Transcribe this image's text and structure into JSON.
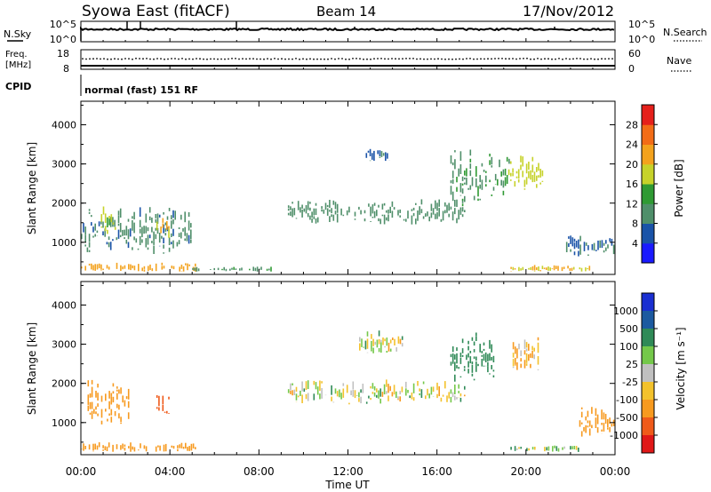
{
  "header": {
    "station": "Syowa East (fitACF)",
    "beam": "Beam 14",
    "date": "17/Nov/2012"
  },
  "noise_panel": {
    "left_label": "N.Sky",
    "right_label": "N.Search",
    "left_ticks": [
      "10^5",
      "10^0"
    ],
    "right_ticks": [
      "10^5",
      "10^0"
    ]
  },
  "freq_panel": {
    "left_label_1": "Freq.",
    "left_label_2": "[MHz]",
    "right_label": "Nave",
    "left_ticks": [
      "18",
      "8"
    ],
    "right_ticks": [
      "60",
      "0"
    ],
    "freq_value": 13.3,
    "nave_value": 15
  },
  "cpid": {
    "label": "CPID",
    "value": "normal (fast) 151 RF"
  },
  "power_colorbar": {
    "title": "Power [dB]",
    "labels": [
      "4",
      "8",
      "12",
      "16",
      "20",
      "24",
      "28"
    ],
    "colors": [
      "#1a1aff",
      "#1a53a8",
      "#4f8f6a",
      "#2f9a33",
      "#c6d22a",
      "#f3a21d",
      "#f26c17",
      "#e5201b"
    ]
  },
  "velocity_colorbar": {
    "title": "Velocity [m s⁻¹]",
    "labels": [
      "1000",
      "500",
      "100",
      "25",
      "-25",
      "-100",
      "-500",
      "-1000"
    ],
    "colors": [
      "#1a2fd1",
      "#1c5aa0",
      "#2f8a57",
      "#74c84a",
      "#c0c0c0",
      "#f3c22c",
      "#f79a1f",
      "#ef5a1a",
      "#e01818"
    ]
  },
  "axes": {
    "ylabel": "Slant Range [km]",
    "xlabel": "Time UT",
    "yticks": [
      "1000",
      "2000",
      "3000",
      "4000"
    ],
    "xticks": [
      "00:00",
      "04:00",
      "08:00",
      "12:00",
      "16:00",
      "20:00",
      "00:00"
    ]
  },
  "chart_data": {
    "type": "heatmap",
    "title": "Syowa East (fitACF) Beam 14 17/Nov/2012",
    "xlabel": "Time UT",
    "ylabel": "Slant Range [km]",
    "xlim_hours": [
      0,
      24
    ],
    "ylim_km": [
      180,
      4600
    ],
    "panels": [
      {
        "name": "Power [dB]",
        "scale": [
          0,
          30
        ],
        "bands": [
          {
            "t0": 0.0,
            "t1": 5.2,
            "r0": 250,
            "r1": 480,
            "value": 22
          },
          {
            "t0": 0.0,
            "t1": 5.0,
            "r0": 700,
            "r1": 1900,
            "value": 9
          },
          {
            "t0": 0.9,
            "t1": 1.6,
            "r0": 1050,
            "r1": 1950,
            "value": 17
          },
          {
            "t0": 3.3,
            "t1": 4.1,
            "r0": 1100,
            "r1": 1650,
            "value": 21
          },
          {
            "t0": 5.0,
            "t1": 8.6,
            "r0": 250,
            "r1": 380,
            "value": 11
          },
          {
            "t0": 9.3,
            "t1": 17.3,
            "r0": 1450,
            "r1": 2100,
            "value": 10
          },
          {
            "t0": 12.8,
            "t1": 14.0,
            "r0": 3050,
            "r1": 3400,
            "value": 8
          },
          {
            "t0": 16.6,
            "t1": 19.3,
            "r0": 1900,
            "r1": 3400,
            "value": 12
          },
          {
            "t0": 19.2,
            "t1": 20.8,
            "r0": 2300,
            "r1": 3300,
            "value": 18
          },
          {
            "t0": 19.3,
            "t1": 23.0,
            "r0": 250,
            "r1": 420,
            "value": 20
          },
          {
            "t0": 21.8,
            "t1": 24.0,
            "r0": 600,
            "r1": 1200,
            "value": 8
          }
        ]
      },
      {
        "name": "Velocity [m s⁻¹]",
        "scale": [
          -1000,
          1000
        ],
        "bands": [
          {
            "t0": 0.0,
            "t1": 5.2,
            "r0": 250,
            "r1": 500,
            "value": -300
          },
          {
            "t0": 0.3,
            "t1": 2.2,
            "r0": 900,
            "r1": 2100,
            "value": -250
          },
          {
            "t0": 3.3,
            "t1": 4.1,
            "r0": 1100,
            "r1": 1700,
            "value": -700
          },
          {
            "t0": 9.3,
            "t1": 17.3,
            "r0": 1450,
            "r1": 2100,
            "value": 0
          },
          {
            "t0": 12.5,
            "t1": 14.5,
            "r0": 2700,
            "r1": 3400,
            "value": 0
          },
          {
            "t0": 16.6,
            "t1": 18.6,
            "r0": 2000,
            "r1": 3300,
            "value": 300
          },
          {
            "t0": 19.3,
            "t1": 22.5,
            "r0": 250,
            "r1": 420,
            "value": 60
          },
          {
            "t0": 19.4,
            "t1": 20.6,
            "r0": 2300,
            "r1": 3200,
            "value": -100
          },
          {
            "t0": 22.3,
            "t1": 24.0,
            "r0": 600,
            "r1": 1400,
            "value": -300
          }
        ]
      }
    ]
  }
}
